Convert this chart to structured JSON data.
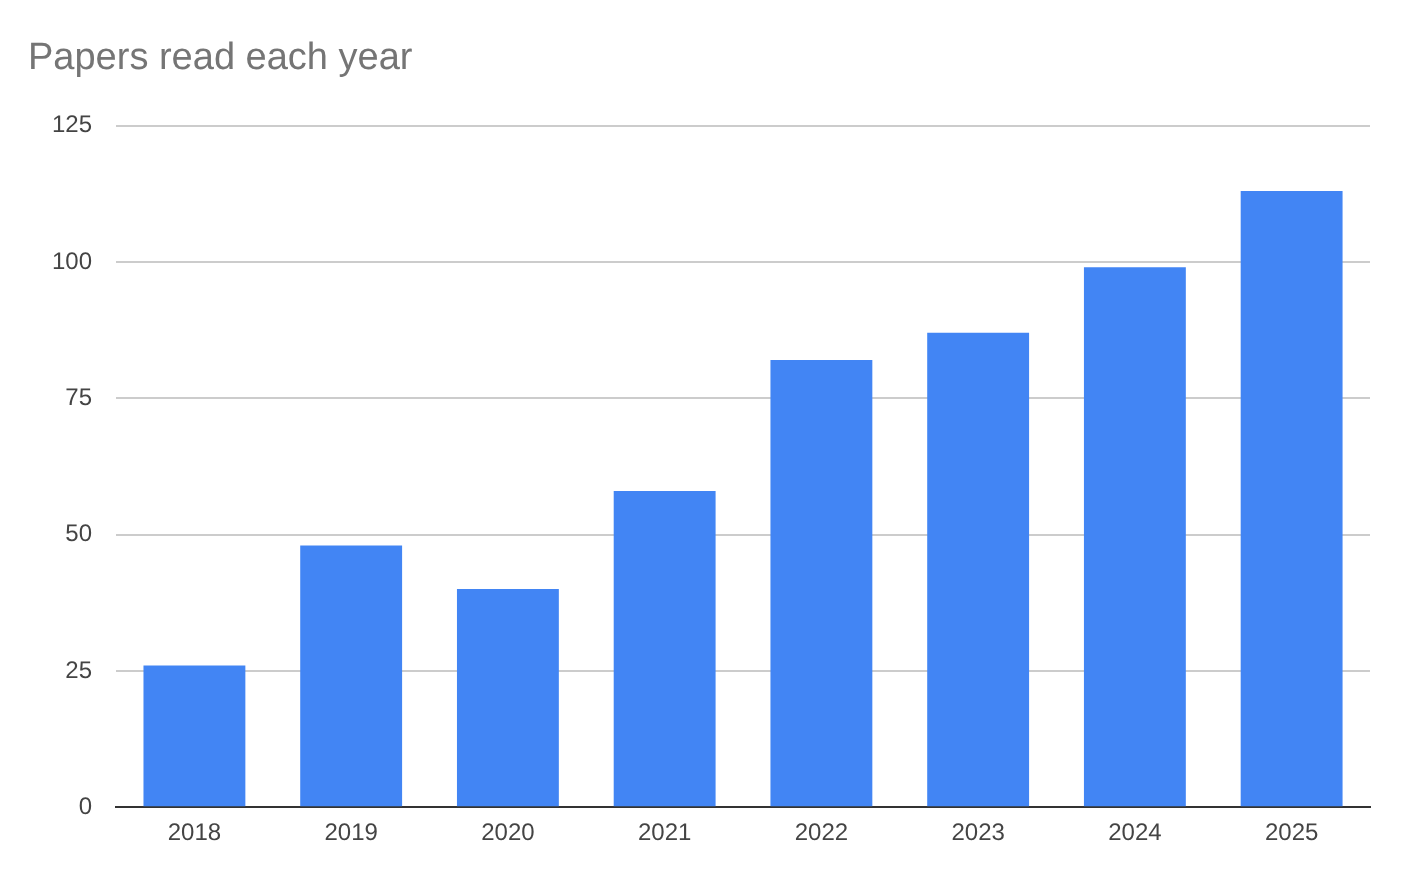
{
  "chart_data": {
    "type": "bar",
    "title": "Papers read each year",
    "categories": [
      "2018",
      "2019",
      "2020",
      "2021",
      "2022",
      "2023",
      "2024",
      "2025"
    ],
    "values": [
      26,
      48,
      40,
      58,
      82,
      87,
      99,
      113
    ],
    "color": "#4285f4",
    "ylim": [
      0,
      125
    ],
    "yticks": [
      0,
      25,
      50,
      75,
      100,
      125
    ],
    "grid": "y",
    "legend": false
  }
}
